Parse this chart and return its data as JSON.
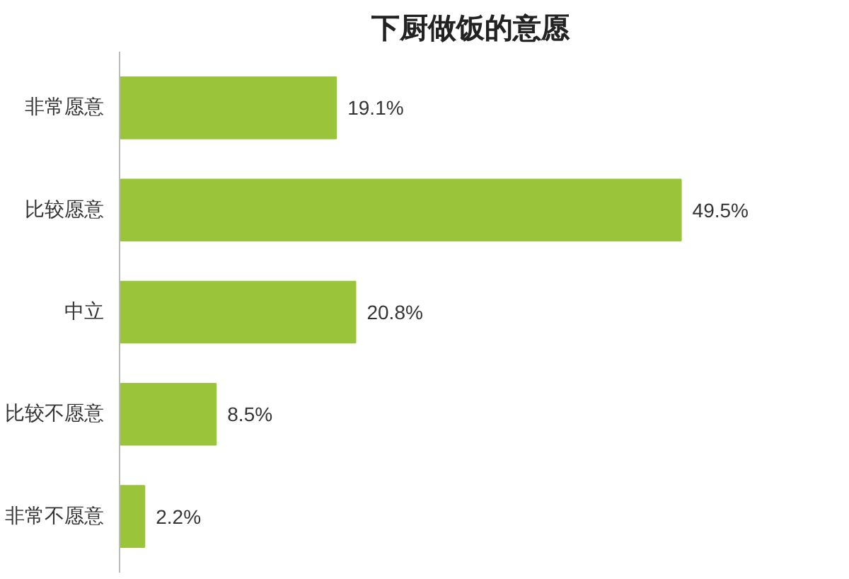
{
  "chart_data": {
    "type": "bar",
    "orientation": "horizontal",
    "title": "下厨做饭的意愿",
    "categories": [
      "非常愿意",
      "比较愿意",
      "中立",
      "比较不愿意",
      "非常不愿意"
    ],
    "values": [
      19.1,
      49.5,
      20.8,
      8.5,
      2.2
    ],
    "value_labels": [
      "19.1%",
      "49.5%",
      "20.8%",
      "8.5%",
      "2.2%"
    ],
    "color": "#9ac53a",
    "grid": false
  }
}
